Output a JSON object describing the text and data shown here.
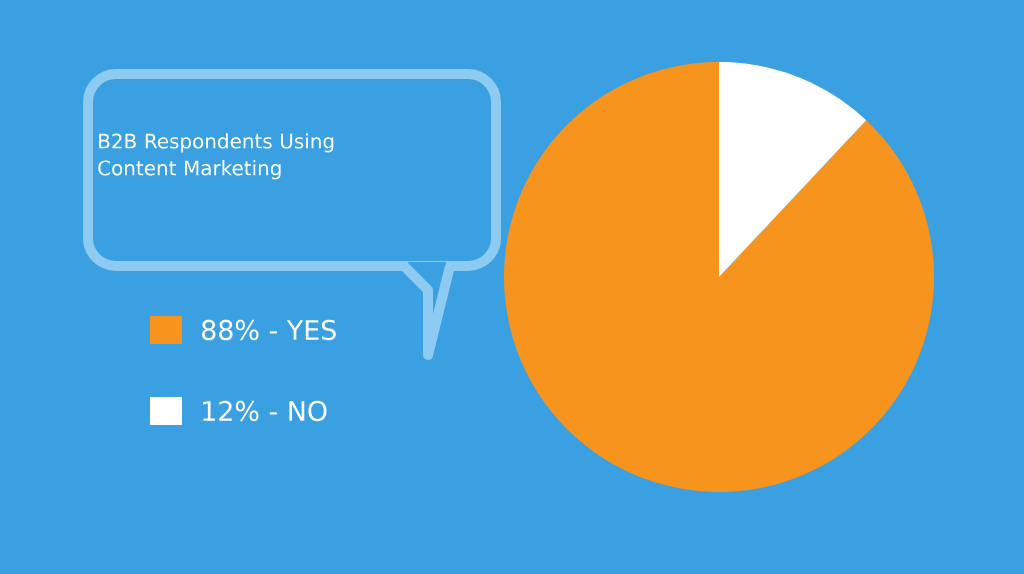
{
  "chart_data": {
    "type": "pie",
    "title": "B2B Respondents Using Content Marketing",
    "categories": [
      "88% - YES",
      "12% - NO"
    ],
    "values": [
      88,
      12
    ],
    "colors": [
      "#f7941d",
      "#ffffff"
    ],
    "legend": "left"
  }
}
